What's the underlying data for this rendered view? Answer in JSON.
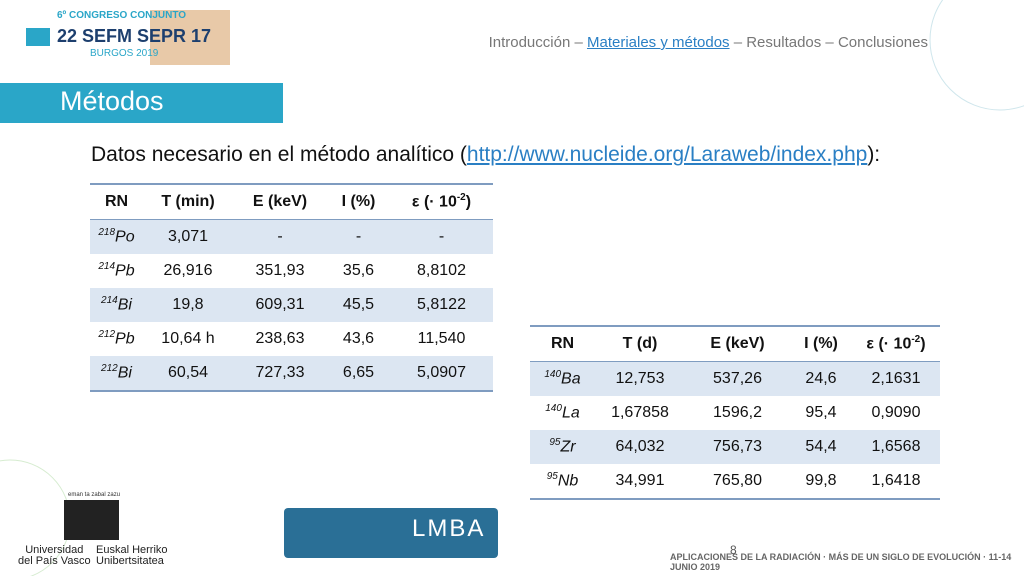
{
  "header": {
    "logo": {
      "line1": "6º CONGRESO CONJUNTO",
      "line2": "22 SEFM SEPR 17",
      "line3": "BURGOS 2019"
    },
    "nav": {
      "before": "Introducción – ",
      "current": "Materiales y métodos",
      "after": " – Resultados – Conclusiones"
    }
  },
  "title": "Métodos",
  "intro": {
    "text": "Datos necesario en el método analítico (",
    "link": "http://www.nucleide.org/Laraweb/index.php",
    "end": "):"
  },
  "tables": [
    {
      "header": [
        "RN",
        "T (min)",
        "E (keV)",
        "I (%)",
        {
          "text": "ε (· 10",
          "sup": "-2",
          "end": ")"
        }
      ],
      "rows": [
        [
          {
            "mass": "218",
            "symbol": "Po"
          },
          "3,071",
          "-",
          "-",
          "-"
        ],
        [
          {
            "mass": "214",
            "symbol": "Pb"
          },
          "26,916",
          "351,93",
          "35,6",
          "8,8102"
        ],
        [
          {
            "mass": "214",
            "symbol": "Bi"
          },
          "19,8",
          "609,31",
          "45,5",
          "5,8122"
        ],
        [
          {
            "mass": "212",
            "symbol": "Pb"
          },
          "10,64 h",
          "238,63",
          "43,6",
          "11,540"
        ],
        [
          {
            "mass": "212",
            "symbol": "Bi"
          },
          "60,54",
          "727,33",
          "6,65",
          "5,0907"
        ]
      ]
    },
    {
      "header": [
        "RN",
        "T (d)",
        "E (keV)",
        "I (%)",
        {
          "text": "ε (· 10",
          "sup": "-2",
          "end": ")"
        }
      ],
      "rows": [
        [
          {
            "mass": "140",
            "symbol": "Ba"
          },
          "12,753",
          "537,26",
          "24,6",
          "2,1631"
        ],
        [
          {
            "mass": "140",
            "symbol": "La"
          },
          "1,67858",
          "1596,2",
          "95,4",
          "0,9090"
        ],
        [
          {
            "mass": "95",
            "symbol": "Zr"
          },
          "64,032",
          "756,73",
          "54,4",
          "1,6568"
        ],
        [
          {
            "mass": "95",
            "symbol": "Nb"
          },
          "34,991",
          "765,80",
          "99,8",
          "1,6418"
        ]
      ]
    }
  ],
  "footer": {
    "university": {
      "motto": "eman ta zabal zazu",
      "es1": "Universidad",
      "es2": "del País Vasco",
      "eu1": "Euskal Herriko",
      "eu2": "Unibertsitatea"
    },
    "lab": "LMBA",
    "page": "8",
    "banner": "APLICACIONES DE LA RADIACIÓN · MÁS DE UN SIGLO DE EVOLUCIÓN · 11-14 JUNIO 2019"
  }
}
